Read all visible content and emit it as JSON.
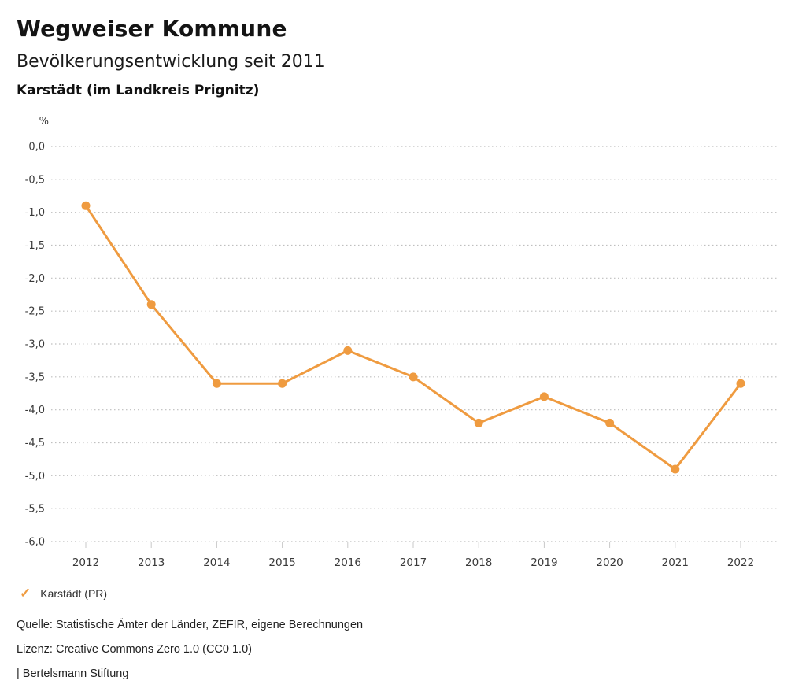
{
  "header": {
    "title": "Wegweiser Kommune",
    "subtitle": "Bevölkerungsentwicklung seit 2011",
    "location": "Karstädt (im Landkreis Prignitz)"
  },
  "chart_data": {
    "type": "line",
    "title": "Bevölkerungsentwicklung seit 2011",
    "unit_label": "%",
    "categories": [
      "2012",
      "2013",
      "2014",
      "2015",
      "2016",
      "2017",
      "2018",
      "2019",
      "2020",
      "2021",
      "2022"
    ],
    "series": [
      {
        "name": "Karstädt (PR)",
        "color": "#EF9B40",
        "values": [
          -0.9,
          -2.4,
          -3.6,
          -3.6,
          -3.1,
          -3.5,
          -4.2,
          -3.8,
          -4.2,
          -4.9,
          -3.6
        ]
      }
    ],
    "ylim": [
      -6.0,
      0.0
    ],
    "y_tick_step": 0.5,
    "y_tick_labels": [
      "0,0",
      "-0,5",
      "-1,0",
      "-1,5",
      "-2,0",
      "-2,5",
      "-3,0",
      "-3,5",
      "-4,0",
      "-4,5",
      "-5,0",
      "-5,5",
      "-6,0"
    ],
    "grid": "dotted horizontal gridlines",
    "legend_position": "bottom-left",
    "marker_style": "filled circle"
  },
  "legend": {
    "marker_glyph": "✓",
    "label": "Karstädt (PR)"
  },
  "footer": {
    "source": "Quelle: Statistische Ämter der Länder, ZEFIR, eigene Berechnungen",
    "license": "Lizenz: Creative Commons Zero 1.0 (CC0 1.0)",
    "attribution": "| Bertelsmann Stiftung"
  },
  "colors": {
    "series": "#EF9B40",
    "grid": "#BFBFBF",
    "tick": "#C9C9C9",
    "axis_text": "#3a3a3a",
    "title_text": "#141414",
    "footer_text": "#222222"
  }
}
